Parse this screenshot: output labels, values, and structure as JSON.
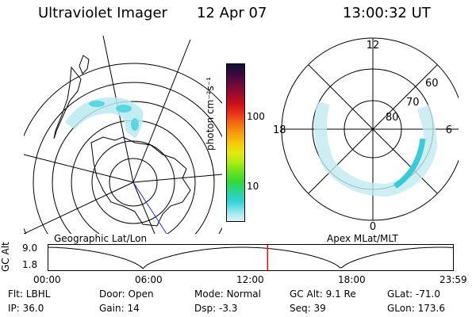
{
  "header": {
    "instrument": "Ultraviolet Imager",
    "date": "12 Apr 07",
    "time": "13:00:32 UT"
  },
  "colorbar": {
    "unit_label": "photon cm⁻²s⁻¹",
    "ticks": [
      "100",
      "10"
    ],
    "colors": [
      "#111133",
      "#3a0a40",
      "#6b0a3a",
      "#9a0a30",
      "#c8101a",
      "#e8301a",
      "#f26a14",
      "#f59a0c",
      "#f5c80a",
      "#e8e810",
      "#b0ea14",
      "#6ae21e",
      "#34d83a",
      "#2ad49a",
      "#30d2d8",
      "#8ee6ea",
      "#dff4f6"
    ]
  },
  "left_panel": {
    "label": "Geographic Lat/Lon"
  },
  "right_panel": {
    "label": "Apex MLat/MLT",
    "mlt_labels": {
      "top": "12",
      "left": "18",
      "right": "6",
      "bottom": "0"
    },
    "lat_labels": [
      "60",
      "70",
      "80"
    ]
  },
  "timeline": {
    "ylabel": "GC Alt",
    "yticks": [
      "9.0",
      "1.8"
    ],
    "xticks": [
      "00:00",
      "06:00",
      "12:00",
      "18:00",
      "23:59"
    ],
    "marker_time_hours": 13.0
  },
  "info": {
    "row1": [
      {
        "label": "Flt:",
        "value": "LBHL"
      },
      {
        "label": "Door:",
        "value": "Open"
      },
      {
        "label": "Mode:",
        "value": "Normal"
      },
      {
        "label": "GC Alt:",
        "value": "9.1 Re"
      },
      {
        "label": "GLat:",
        "value": "-71.0"
      }
    ],
    "row2": [
      {
        "label": "IP:",
        "value": "36.0"
      },
      {
        "label": "Gain:",
        "value": "14"
      },
      {
        "label": "Dsp:",
        "value": "-3.3"
      },
      {
        "label": "Seq:",
        "value": "39"
      },
      {
        "label": "GLon:",
        "value": "173.6"
      }
    ]
  }
}
